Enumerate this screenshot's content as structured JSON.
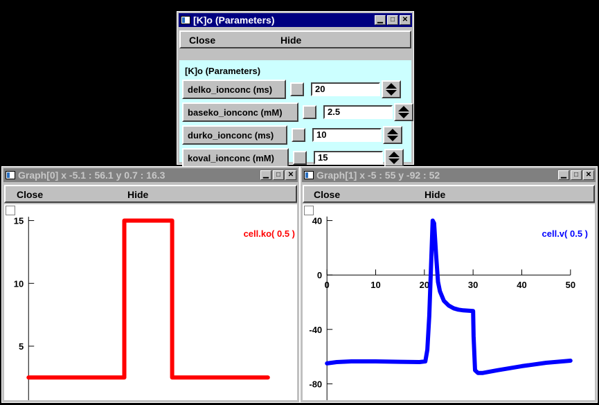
{
  "param_window": {
    "title": "[K]o (Parameters)",
    "menu": {
      "close": "Close",
      "hide": "Hide"
    },
    "section_label": "[K]o (Parameters)",
    "params": [
      {
        "label": "delko_ionconc (ms)",
        "value": "20"
      },
      {
        "label": "baseko_ionconc (mM)",
        "value": "2.5"
      },
      {
        "label": "durko_ionconc (ms)",
        "value": "10"
      },
      {
        "label": "koval_ionconc (mM)",
        "value": "15"
      }
    ],
    "bg_color": "#ccffff"
  },
  "graph0": {
    "title": "Graph[0]  x -5.1 : 56.1  y 0.7 : 16.3",
    "menu": {
      "close": "Close",
      "hide": "Hide"
    },
    "legend": "cell.ko( 0.5 )",
    "color": "#ff0000"
  },
  "graph1": {
    "title": "Graph[1]  x -5 : 55  y -92 : 52",
    "menu": {
      "close": "Close",
      "hide": "Hide"
    },
    "legend": "cell.v( 0.5 )",
    "color": "#0000ff"
  },
  "chart_data": [
    {
      "type": "line",
      "xlim": [
        -5.1,
        56.1
      ],
      "ylim": [
        0.7,
        16.3
      ],
      "y_ticks": [
        5,
        10,
        15
      ],
      "series": [
        {
          "name": "cell.ko( 0.5 )",
          "color": "#ff0000",
          "x": [
            0,
            20,
            20,
            30,
            30,
            50
          ],
          "y": [
            2.5,
            2.5,
            15,
            15,
            2.5,
            2.5
          ]
        }
      ]
    },
    {
      "type": "line",
      "xlim": [
        -5,
        55
      ],
      "ylim": [
        -92,
        52
      ],
      "x_ticks": [
        0,
        10,
        20,
        30,
        40,
        50
      ],
      "y_ticks": [
        -80,
        -40,
        0,
        40
      ],
      "series": [
        {
          "name": "cell.v( 0.5 )",
          "color": "#0000ff",
          "x": [
            0,
            2,
            5,
            10,
            15,
            19,
            20.2,
            20.6,
            21,
            21.4,
            21.7,
            22,
            22.4,
            22.8,
            23.2,
            24,
            25,
            26,
            27,
            28,
            30,
            30.1,
            30.4,
            31,
            32,
            35,
            40,
            45,
            50
          ],
          "y": [
            -65,
            -64,
            -63.5,
            -63.5,
            -63.8,
            -64,
            -63.5,
            -55,
            -30,
            10,
            40,
            38,
            15,
            -5,
            -12,
            -19,
            -22.5,
            -24.5,
            -25.5,
            -26,
            -26.5,
            -45,
            -70,
            -72,
            -72,
            -70,
            -67,
            -64.5,
            -63
          ]
        }
      ]
    }
  ]
}
